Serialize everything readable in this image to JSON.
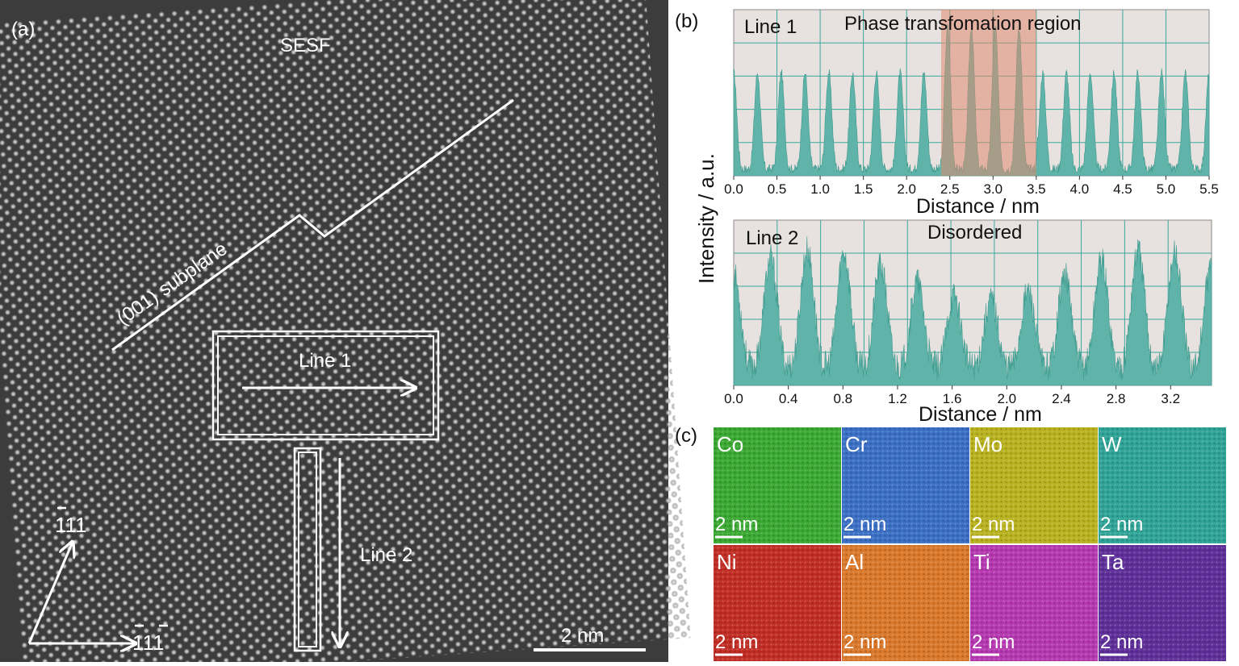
{
  "panel_a": {
    "label": "(a)",
    "sesf": "SESF",
    "subplane": "(001) subplane",
    "line1": "Line 1",
    "line2": "Line 2",
    "scale": "2 nm",
    "dir_up": "111",
    "dir_right": "111"
  },
  "panel_b": {
    "label": "(b)",
    "ylabel": "Intensity / a.u.",
    "xlabel": "Distance / nm",
    "line1": "Line 1",
    "line2": "Line 2",
    "phase": "Phase transfomation region",
    "disordered": "Disordered",
    "fill_color": "#5fb3a8",
    "highlight_color": "#e08a6f"
  },
  "chart_data": [
    {
      "type": "area",
      "series": [
        {
          "name": "Line 1",
          "peaks": 20
        }
      ],
      "x_range": [
        0.0,
        5.5
      ],
      "x_ticks": [
        "0.0",
        "0.5",
        "1.0",
        "1.5",
        "2.0",
        "2.5",
        "3.0",
        "3.5",
        "4.0",
        "4.5",
        "5.0",
        "5.5"
      ],
      "highlight_x": [
        2.4,
        3.5
      ],
      "xlabel": "Distance / nm",
      "ylabel": "Intensity / a.u.",
      "grid": true
    },
    {
      "type": "area",
      "series": [
        {
          "name": "Line 2",
          "peaks": 13
        }
      ],
      "x_range": [
        0.0,
        3.5
      ],
      "x_ticks": [
        "0.0",
        "0.4",
        "0.8",
        "1.2",
        "1.6",
        "2.0",
        "2.4",
        "2.8",
        "3.2"
      ],
      "xlabel": "Distance / nm",
      "ylabel": "Intensity / a.u.",
      "grid": true
    }
  ],
  "panel_c": {
    "label": "(c)",
    "scale": "2 nm",
    "maps": [
      {
        "el": "Co",
        "color": "#3aa832"
      },
      {
        "el": "Cr",
        "color": "#3a6fc4"
      },
      {
        "el": "Mo",
        "color": "#b8b11f"
      },
      {
        "el": "W",
        "color": "#2fa396"
      },
      {
        "el": "Ni",
        "color": "#c02d24"
      },
      {
        "el": "Al",
        "color": "#d9772a"
      },
      {
        "el": "Ti",
        "color": "#b537b0"
      },
      {
        "el": "Ta",
        "color": "#5e2e99"
      }
    ]
  }
}
